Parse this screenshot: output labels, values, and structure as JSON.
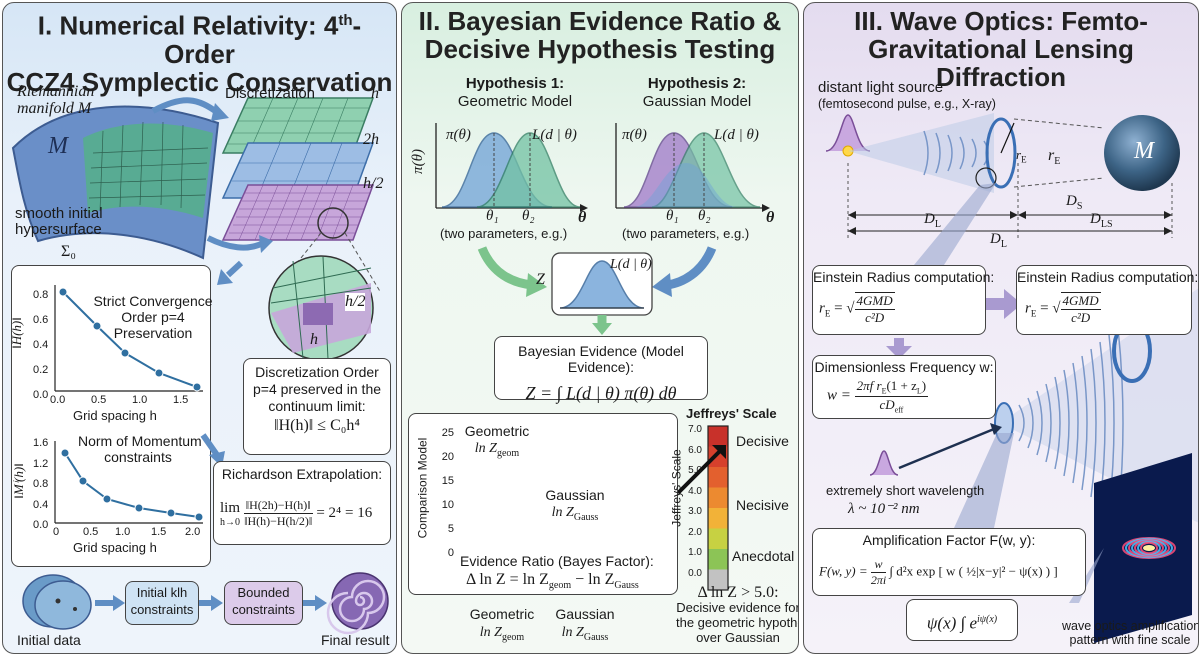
{
  "panel1": {
    "title_line1": "I. Numerical Relativity: 4",
    "title_sup": "th",
    "title_line1_end": "-Order",
    "title_line2": "CCZ4 Symplectic Conservation",
    "manifold_label_1": "Riemannian",
    "manifold_label_2": "manifold M",
    "M": "M",
    "hypersurface_1": "smooth initial",
    "hypersurface_2": "hypersurface",
    "sigma": "Σ₀",
    "discretization": "Discretization",
    "grid_h": "h",
    "grid_2h": "2h",
    "grid_h2": "h/2",
    "zoom_h2": "h/2",
    "zoom_h": "h",
    "chart1": {
      "title_1": "Strict Convergence",
      "title_2": "Order p=4",
      "title_3": "Preservation",
      "ylabel": "‖H(h)‖",
      "xlabel": "Grid spacing h",
      "yticks": [
        "0.8",
        "0.6",
        "0.4",
        "0.2",
        "0.0"
      ],
      "xticks": [
        "0.0",
        "0.5",
        "1.0",
        "1.5"
      ]
    },
    "chart2": {
      "title_1": "Norm of Momentum",
      "title_2": "constraints",
      "ylabel": "‖Mⁱ(h)‖",
      "xlabel": "Grid spacing h",
      "yticks": [
        "1.6",
        "1.2",
        "0.8",
        "0.4",
        "0.0"
      ],
      "xticks": [
        "0",
        "0.5",
        "1.0",
        "1.5",
        "2.0"
      ]
    },
    "disc_box_1": "Discretization Order",
    "disc_box_2": "p=4 preserved in the",
    "disc_box_3": "continuum limit:",
    "disc_box_formula": "‖H(h)‖ ≤ C₀h⁴",
    "rich_title": "Richardson Extrapolation:",
    "rich_lim": "lim",
    "rich_sub": "h→0",
    "rich_num": "‖H(2h)−H(h)‖",
    "rich_den": "‖H(h)−H(h/2)‖",
    "rich_result": "= 2⁴ = 16",
    "flow_initial": "Initial data",
    "flow_klh_1": "Initial klh",
    "flow_klh_2": "constraints",
    "flow_bounded_1": "Bounded",
    "flow_bounded_2": "constraints",
    "flow_final": "Final result"
  },
  "panel2": {
    "title_line1": "II. Bayesian Evidence Ratio &",
    "title_line2": "Decisive Hypothesis Testing",
    "hyp1_title": "Hypothesis 1:",
    "hyp1_sub": "Geometric Model",
    "hyp2_title": "Hypothesis 2:",
    "hyp2_sub": "Gaussian Model",
    "prior": "π(θ)",
    "likelihood": "L(d | θ)",
    "theta": "θ",
    "theta1": "θ₁",
    "theta2": "θ₂",
    "two_params": "(two parameters, e.g.)",
    "Z": "Z",
    "mid_likelihood": "L(d | θ)",
    "evidence_title": "Bayesian Evidence (Model Evidence):",
    "evidence_formula": "Z = ∫ L(d | θ) π(θ) dθ",
    "bar_chart": {
      "ylabel": "Comparison Model",
      "yticks": [
        "25",
        "20",
        "15",
        "10",
        "5",
        "0"
      ],
      "geom_label_1": "Geometric",
      "geom_label_2": "ln Z",
      "geom_sub": "geom",
      "gauss_label_1": "Gaussian",
      "gauss_label_2": "ln Z",
      "gauss_sub": "Gauss",
      "ratio_title": "Evidence Ratio (Bayes Factor):",
      "ratio_formula": "Δ ln Z = ln Z",
      "ratio_sub1": "geom",
      "ratio_mid": " − ln Z",
      "ratio_sub2": "Gauss",
      "x_geom_1": "Geometric",
      "x_geom_2": "ln Z",
      "x_geom_sub": "geom",
      "x_gauss_1": "Gaussian",
      "x_gauss_2": "ln Z",
      "x_gauss_sub": "Gauss"
    },
    "jeffreys": {
      "title": "Jeffreys' Scale",
      "ylabel": "Jeffreys' Scale",
      "ticks": [
        "7.0",
        "6.0",
        "5.0",
        "4.0",
        "3.0",
        "2.0",
        "1.0",
        "0.0"
      ],
      "decisive": "Decisive",
      "necisive": "Necisive",
      "anecdotal": "Anecdotal"
    },
    "conclusion_1": "Δ ln Z > 5.0:",
    "conclusion_2": "Decisive evidence for",
    "conclusion_3": "the geometric hypothesis",
    "conclusion_4": "over Gaussian"
  },
  "panel3": {
    "title_line1": "III. Wave Optics: Femto-",
    "title_line2": "Gravitational Lensing Diffraction",
    "source_1": "distant light source",
    "source_2": "(femtosecond pulse, e.g., X-ray)",
    "rE": "r",
    "rE_sub": "E",
    "M": "M",
    "DS": "D",
    "DS_sub": "S",
    "DL": "D",
    "DL_sub": "L",
    "DLS": "D",
    "DLS_sub": "LS",
    "einstein_title": "Einstein Radius computation:",
    "einstein_title_2": "Einstein Radius computation:",
    "einstein_lhs": "r",
    "einstein_num": "4GMD",
    "einstein_den": "c²D",
    "freq_title": "Dimensionless Frequency w:",
    "freq_lhs": "w =",
    "freq_num": "2πf r",
    "freq_num_end": "(1 + z",
    "freq_den": "cD",
    "freq_den_sub": "eff",
    "short_wave_1": "extremely short wavelength",
    "short_wave_2": "λ ~ 10⁻² nm",
    "amp_title": "Amplification Factor F(w, y):",
    "amp_lhs": "F(w, y) =",
    "amp_frac_num": "w",
    "amp_frac_den": "2πi",
    "amp_rest": "∫ d²x exp [ w ( ½|x−y|² − ψ(x) ) ]",
    "psi_formula": "ψ(x) ∫ e",
    "psi_sup": "iψ(x)",
    "pattern_1": "wave optics amplification",
    "pattern_2": "pattern with fine scale"
  },
  "colors": {
    "teal": "#2e8a9a",
    "purple": "#9b78c4",
    "blue_arrow": "#5f8ec4",
    "green_arrow": "#7cc48c",
    "purple_arrow": "#a99ad0"
  }
}
